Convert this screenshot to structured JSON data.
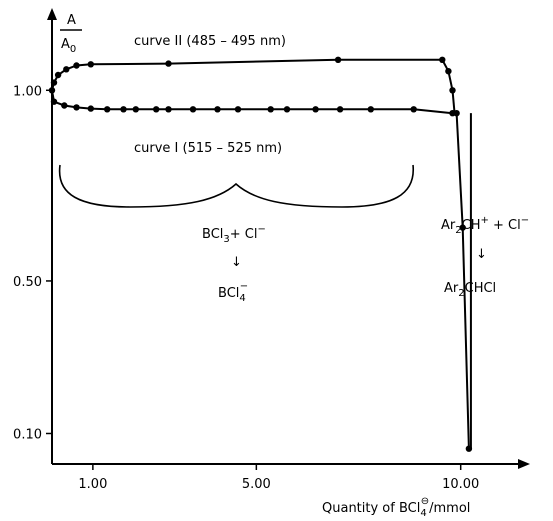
{
  "chart_data": {
    "type": "line",
    "ylabel_numerator": "A",
    "ylabel_denominator": "A",
    "ylabel_denominator_sub": "0",
    "xlabel_prefix": "Quantity of BCl",
    "xlabel_sub": "4",
    "xlabel_sup": "⊖",
    "xlabel_suffix": "/mmol",
    "xlim": [
      0.0,
      11.5
    ],
    "ylim": [
      0.02,
      1.2
    ],
    "x_ticks": [
      1.0,
      5.0,
      10.0
    ],
    "x_tick_labels": [
      "1.00",
      "5.00",
      "10.00"
    ],
    "y_ticks": [
      0.1,
      0.5,
      1.0
    ],
    "y_tick_labels": [
      "0.10",
      "0.50",
      "1.00"
    ],
    "series": [
      {
        "name": "curve II (485 – 495 nm)",
        "x": [
          0.0,
          0.05,
          0.15,
          0.35,
          0.6,
          0.95,
          2.85,
          7.0,
          9.55,
          9.7,
          9.8
        ],
        "y": [
          1.0,
          1.02,
          1.04,
          1.055,
          1.065,
          1.068,
          1.07,
          1.08,
          1.08,
          1.05,
          1.0
        ]
      },
      {
        "name": "curve I (515 – 525 nm)",
        "x": [
          0.05,
          0.3,
          0.6,
          0.95,
          1.35,
          1.75,
          2.05,
          2.55,
          2.85,
          3.45,
          4.05,
          4.55,
          5.35,
          5.75,
          6.45,
          7.05,
          7.8,
          8.85,
          9.8,
          9.9
        ],
        "y": [
          0.97,
          0.96,
          0.955,
          0.952,
          0.95,
          0.95,
          0.95,
          0.95,
          0.95,
          0.95,
          0.95,
          0.95,
          0.95,
          0.95,
          0.95,
          0.95,
          0.95,
          0.95,
          0.94,
          0.94
        ]
      },
      {
        "name": "drop",
        "x": [
          9.9,
          10.05,
          10.2
        ],
        "y": [
          0.94,
          0.64,
          0.06
        ]
      }
    ],
    "labels": {
      "curve2": "curve II (485 – 495 nm)",
      "curve1": "curve I (515 – 525 nm)",
      "left_top": "BCl",
      "left_top_sub": "3",
      "left_top_rest": "+ Cl",
      "left_top_sup": "−",
      "left_bottom": "BCl",
      "left_bottom_sub": "4",
      "left_bottom_sup": "−",
      "right_top_a": "Ar",
      "right_top_a_sub": "2",
      "right_top_b": "CH",
      "right_top_b_sup": "+",
      "right_top_c": " + Cl",
      "right_top_c_sup": "−",
      "right_bottom_a": "Ar",
      "right_bottom_a_sub": "2",
      "right_bottom_b": "CHCl",
      "arrow": "↓"
    },
    "colors": {
      "line": "#000000",
      "marker": "#000000"
    }
  }
}
